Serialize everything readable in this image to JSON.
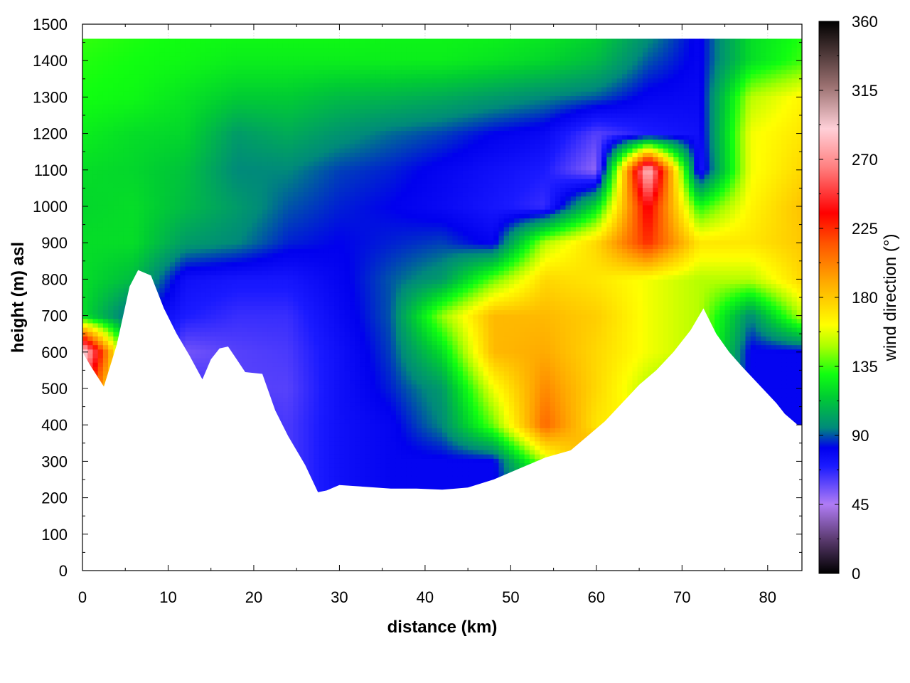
{
  "chart_data": {
    "type": "heatmap",
    "title": "",
    "xlabel": "distance (km)",
    "ylabel": "height (m) asl",
    "xlim": [
      0,
      84
    ],
    "ylim": [
      0,
      1500
    ],
    "x_ticks": [
      "0",
      "10",
      "20",
      "30",
      "40",
      "50",
      "60",
      "70",
      "80"
    ],
    "y_ticks": [
      "0",
      "100",
      "200",
      "300",
      "400",
      "500",
      "600",
      "700",
      "800",
      "900",
      "1000",
      "1100",
      "1200",
      "1300",
      "1400",
      "1500"
    ],
    "grid": true,
    "colorbar": {
      "label": "wind direction (°)",
      "range": [
        0,
        360
      ],
      "ticks": [
        "0",
        "45",
        "90",
        "135",
        "180",
        "225",
        "270",
        "315",
        "360"
      ],
      "stops": [
        {
          "v": 0,
          "c": "#000000"
        },
        {
          "v": 22,
          "c": "#5a3a6e"
        },
        {
          "v": 45,
          "c": "#b07cf5"
        },
        {
          "v": 70,
          "c": "#1a1aff"
        },
        {
          "v": 82,
          "c": "#0000ee"
        },
        {
          "v": 95,
          "c": "#008a7a"
        },
        {
          "v": 115,
          "c": "#00cc33"
        },
        {
          "v": 130,
          "c": "#10ff10"
        },
        {
          "v": 148,
          "c": "#aaff00"
        },
        {
          "v": 162,
          "c": "#ffff00"
        },
        {
          "v": 190,
          "c": "#ffaa00"
        },
        {
          "v": 215,
          "c": "#ff5500"
        },
        {
          "v": 235,
          "c": "#ff0000"
        },
        {
          "v": 265,
          "c": "#ff8080"
        },
        {
          "v": 290,
          "c": "#ffd0d8"
        },
        {
          "v": 318,
          "c": "#9a7070"
        },
        {
          "v": 360,
          "c": "#000000"
        }
      ]
    },
    "terrain_x": [
      0,
      1,
      2.5,
      4,
      5.5,
      6.5,
      8,
      9.5,
      11,
      12.5,
      14,
      15,
      16,
      17,
      18,
      19,
      21,
      22.5,
      24,
      26,
      27.5,
      28.5,
      30,
      33,
      36,
      39,
      42,
      45,
      48,
      51,
      54,
      57,
      59,
      61,
      63,
      65,
      67,
      69,
      71,
      72.5,
      74,
      75.5,
      77,
      79,
      81,
      82,
      83.5
    ],
    "terrain_height": [
      600,
      560,
      505,
      620,
      780,
      825,
      810,
      720,
      650,
      590,
      525,
      580,
      610,
      615,
      580,
      545,
      540,
      440,
      370,
      290,
      215,
      220,
      235,
      230,
      225,
      225,
      222,
      228,
      250,
      280,
      310,
      330,
      370,
      410,
      460,
      510,
      550,
      600,
      660,
      720,
      650,
      600,
      560,
      510,
      460,
      430,
      400
    ],
    "x_centers": [
      0,
      6,
      12,
      18,
      24,
      30,
      36,
      42,
      48,
      54,
      60,
      66,
      72,
      78,
      84
    ],
    "height_levels": [
      200,
      300,
      400,
      500,
      600,
      700,
      800,
      900,
      1000,
      1100,
      1200,
      1300,
      1400,
      1500
    ],
    "wind_direction": [
      [
        120,
        120,
        70,
        68,
        62,
        75,
        80,
        80,
        80,
        95,
        140,
        150,
        80,
        80,
        80
      ],
      [
        120,
        120,
        70,
        68,
        62,
        75,
        80,
        80,
        80,
        150,
        200,
        160,
        80,
        80,
        80
      ],
      [
        120,
        120,
        70,
        68,
        62,
        75,
        80,
        95,
        140,
        210,
        170,
        160,
        80,
        80,
        80
      ],
      [
        240,
        120,
        65,
        60,
        60,
        75,
        85,
        100,
        160,
        200,
        175,
        150,
        135,
        80,
        80
      ],
      [
        300,
        95,
        55,
        60,
        62,
        75,
        88,
        120,
        185,
        190,
        175,
        160,
        150,
        80,
        80
      ],
      [
        120,
        85,
        70,
        65,
        65,
        78,
        90,
        145,
        185,
        185,
        178,
        160,
        150,
        95,
        150
      ],
      [
        120,
        110,
        75,
        72,
        72,
        80,
        90,
        100,
        140,
        175,
        170,
        160,
        150,
        150,
        175
      ],
      [
        120,
        120,
        100,
        95,
        85,
        82,
        85,
        88,
        80,
        150,
        175,
        225,
        170,
        170,
        180
      ],
      [
        118,
        120,
        110,
        100,
        90,
        85,
        82,
        78,
        72,
        65,
        120,
        240,
        130,
        165,
        182
      ],
      [
        120,
        118,
        112,
        95,
        95,
        88,
        85,
        80,
        75,
        70,
        50,
        290,
        70,
        160,
        175
      ],
      [
        125,
        120,
        118,
        100,
        105,
        98,
        92,
        88,
        82,
        78,
        60,
        70,
        75,
        160,
        170
      ],
      [
        130,
        128,
        122,
        115,
        115,
        110,
        108,
        105,
        100,
        95,
        90,
        80,
        78,
        150,
        165
      ],
      [
        132,
        130,
        128,
        125,
        125,
        125,
        125,
        125,
        122,
        118,
        110,
        90,
        80,
        120,
        135
      ],
      [
        135,
        132,
        130,
        130,
        130,
        130,
        128,
        128,
        128,
        125,
        120,
        100,
        80,
        120,
        130
      ]
    ]
  }
}
